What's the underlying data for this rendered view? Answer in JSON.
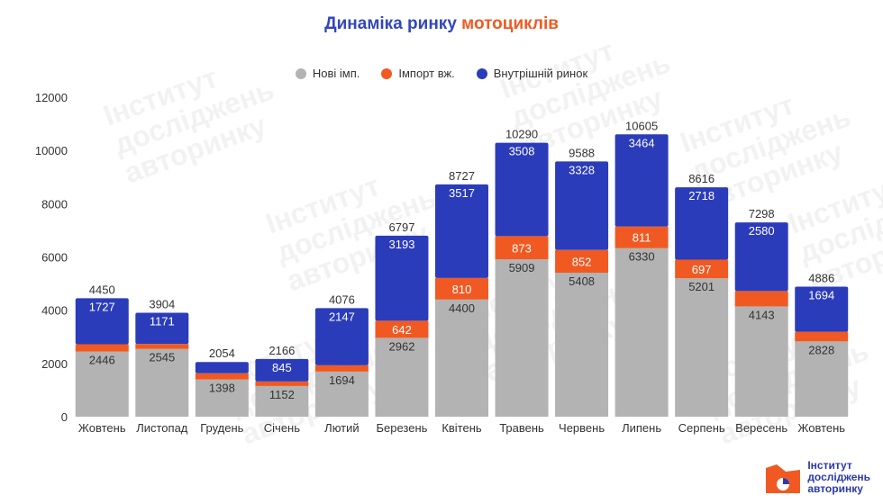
{
  "chart_data": {
    "type": "bar",
    "stacked": true,
    "title_part1": "Динаміка ринку",
    "title_part2": "мотоциклів",
    "categories": [
      "Жовтень",
      "Листопад",
      "Грудень",
      "Січень",
      "Лютий",
      "Березень",
      "Квітень",
      "Травень",
      "Червень",
      "Липень",
      "Серпень",
      "Вересень",
      "Жовтень"
    ],
    "series": [
      {
        "name": "Нові імп.",
        "color": "#b3b3b3",
        "values": [
          2446,
          2545,
          1398,
          1152,
          1694,
          2962,
          4400,
          5909,
          5408,
          6330,
          5201,
          4143,
          2828
        ],
        "labels": [
          "2446",
          "2545",
          "1398",
          "1152",
          "1694",
          "2962",
          "4400",
          "5909",
          "5408",
          "6330",
          "5201",
          "4143",
          "2828"
        ]
      },
      {
        "name": "Імпорт вж.",
        "color": "#f05a22",
        "values": [
          277,
          188,
          231,
          169,
          235,
          642,
          810,
          873,
          852,
          811,
          697,
          575,
          364
        ],
        "labels": [
          "",
          "",
          "",
          "",
          "",
          "642",
          "810",
          "873",
          "852",
          "811",
          "697",
          "",
          ""
        ]
      },
      {
        "name": "Внутрішній ринок",
        "color": "#2b3cba",
        "values": [
          1727,
          1171,
          425,
          845,
          2147,
          3193,
          3517,
          3508,
          3328,
          3464,
          2718,
          2580,
          1694
        ],
        "labels": [
          "1727",
          "1171",
          "",
          "845",
          "2147",
          "3193",
          "3517",
          "3508",
          "3328",
          "3464",
          "2718",
          "2580",
          "1694"
        ]
      }
    ],
    "totals": [
      "4450",
      "3904",
      "2054",
      "2166",
      "4076",
      "6797",
      "8727",
      "10290",
      "9588",
      "10605",
      "8616",
      "7298",
      "4886"
    ],
    "y_ticks": [
      "0",
      "2000",
      "4000",
      "6000",
      "8000",
      "10000",
      "12000"
    ],
    "ylim": [
      0,
      12000
    ],
    "legend_position": "top-center",
    "grid": false
  },
  "watermark": "Інститут досліджень авторинку",
  "logo": {
    "line1": "Інститут",
    "line2": "досліджень",
    "line3": "авторинку"
  }
}
